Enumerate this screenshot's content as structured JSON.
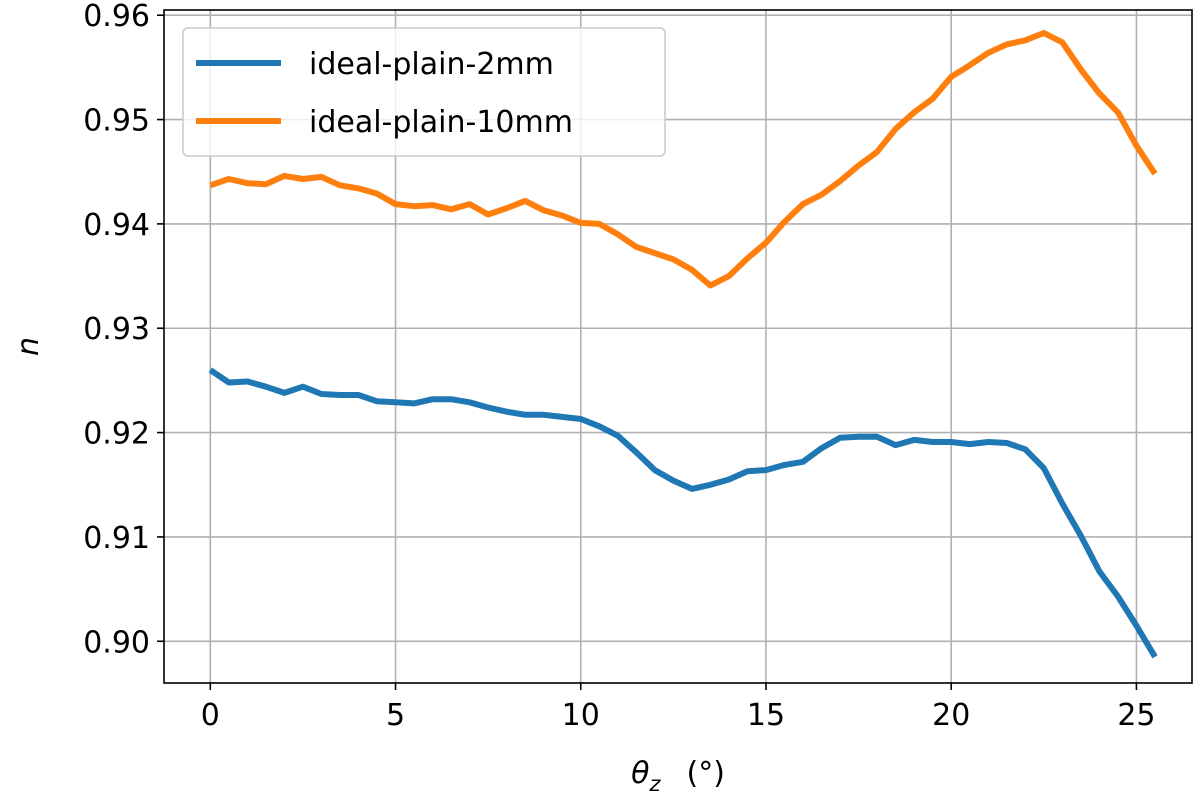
{
  "chart_data": {
    "type": "line",
    "title": "",
    "xlabel": "θ_z (°)",
    "xlabel_parts": {
      "symbol": "θ",
      "subscript": "z",
      "unit": "(°)"
    },
    "ylabel": "n",
    "xlim": [
      -1.25,
      26.5
    ],
    "ylim": [
      0.896,
      0.9605
    ],
    "x_ticks": [
      0,
      5,
      10,
      15,
      20,
      25
    ],
    "x_tick_labels": [
      "0",
      "5",
      "10",
      "15",
      "20",
      "25"
    ],
    "y_ticks": [
      0.9,
      0.91,
      0.92,
      0.93,
      0.94,
      0.95,
      0.96
    ],
    "y_tick_labels": [
      "0.90",
      "0.91",
      "0.92",
      "0.93",
      "0.94",
      "0.95",
      "0.96"
    ],
    "grid": true,
    "legend_position": "top-left",
    "x": [
      0,
      0.5,
      1,
      1.5,
      2,
      2.5,
      3,
      3.5,
      4,
      4.5,
      5,
      5.5,
      6,
      6.5,
      7,
      7.5,
      8,
      8.5,
      9,
      9.5,
      10,
      10.5,
      11,
      11.5,
      12,
      12.5,
      13,
      13.5,
      14,
      14.5,
      15,
      15.5,
      16,
      16.5,
      17,
      17.5,
      18,
      18.5,
      19,
      19.5,
      20,
      20.5,
      21,
      21.5,
      22,
      22.5,
      23,
      23.5,
      24,
      24.5,
      25,
      25.5
    ],
    "series": [
      {
        "name": "ideal-plain-2mm",
        "color": "#1f77b4",
        "values": [
          0.926,
          0.9248,
          0.9249,
          0.9244,
          0.9238,
          0.9244,
          0.9237,
          0.9236,
          0.9236,
          0.923,
          0.9229,
          0.9228,
          0.9232,
          0.9232,
          0.9229,
          0.9224,
          0.922,
          0.9217,
          0.9217,
          0.9215,
          0.9213,
          0.9206,
          0.9197,
          0.9181,
          0.9164,
          0.9154,
          0.9146,
          0.915,
          0.9155,
          0.9163,
          0.9164,
          0.9169,
          0.9172,
          0.9185,
          0.9195,
          0.9196,
          0.9196,
          0.9188,
          0.9193,
          0.9191,
          0.9191,
          0.9189,
          0.9191,
          0.919,
          0.9184,
          0.9166,
          0.9132,
          0.9101,
          0.9067,
          0.9043,
          0.9015,
          0.8985
        ]
      },
      {
        "name": "ideal-plain-10mm",
        "color": "#ff7f0e",
        "values": [
          0.9437,
          0.9443,
          0.9439,
          0.9438,
          0.9446,
          0.9443,
          0.9445,
          0.9437,
          0.9434,
          0.9429,
          0.9419,
          0.9417,
          0.9418,
          0.9414,
          0.9419,
          0.9409,
          0.9415,
          0.9422,
          0.9413,
          0.9408,
          0.9401,
          0.94,
          0.939,
          0.9378,
          0.9372,
          0.9366,
          0.9356,
          0.9341,
          0.935,
          0.9367,
          0.9382,
          0.9402,
          0.9419,
          0.9428,
          0.9441,
          0.9456,
          0.9469,
          0.9491,
          0.9507,
          0.952,
          0.9541,
          0.9552,
          0.9564,
          0.9572,
          0.9576,
          0.9583,
          0.9574,
          0.9548,
          0.9525,
          0.9507,
          0.9475,
          0.9448
        ]
      }
    ]
  }
}
